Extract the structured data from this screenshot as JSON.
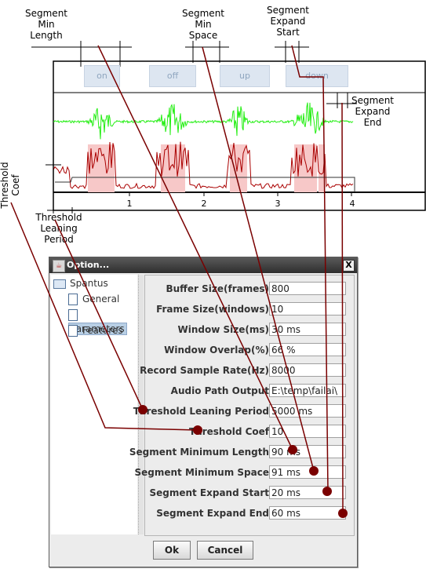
{
  "annotations": {
    "segment_min_length": "Segment\nMin\nLength",
    "segment_min_space": "Segment\nMin\nSpace",
    "segment_expand_start": "Segment\nExpand\nStart",
    "segment_expand_end": "Segment\nExpand\nEnd",
    "threshold_coef": "Threshold\nCoef",
    "threshold_leaning_period": "Threshold\nLeaning\nPeriod"
  },
  "diagram": {
    "segments": [
      "on",
      "off",
      "up",
      "down"
    ],
    "ticks": [
      "1",
      "2",
      "3",
      "4"
    ],
    "colors": {
      "wave": "#22ee11",
      "energy": "#aa0000",
      "segment_bg": "#f7c8c8",
      "leader": "#7a0000"
    }
  },
  "dialog": {
    "title": "Option...",
    "close_label": "X",
    "tree": {
      "root": "Spantus",
      "items": [
        "General",
        "Parameters",
        "Features"
      ],
      "selected": "Parameters"
    },
    "params": [
      {
        "label": "Buffer Size(frames)",
        "value": "800"
      },
      {
        "label": "Frame Size(windows)",
        "value": "10"
      },
      {
        "label": "Window Size(ms)",
        "value": "30 ms"
      },
      {
        "label": "Window Overlap(%)",
        "value": "66 %"
      },
      {
        "label": "Record Sample Rate(Hz)",
        "value": "8000"
      },
      {
        "label": "Audio Path Output",
        "value": "E:\\temp\\failai\\"
      },
      {
        "label": "Threshold Leaning Period",
        "value": "5000 ms"
      },
      {
        "label": "Threshold Coef",
        "value": "10"
      },
      {
        "label": "Segment Minimum Length",
        "value": "90 ms"
      },
      {
        "label": "Segment Minimum Space",
        "value": "91 ms"
      },
      {
        "label": "Segment Expand Start",
        "value": "20 ms"
      },
      {
        "label": "Segment Expand End",
        "value": "60 ms"
      }
    ],
    "ok_label": "Ok",
    "cancel_label": "Cancel"
  }
}
